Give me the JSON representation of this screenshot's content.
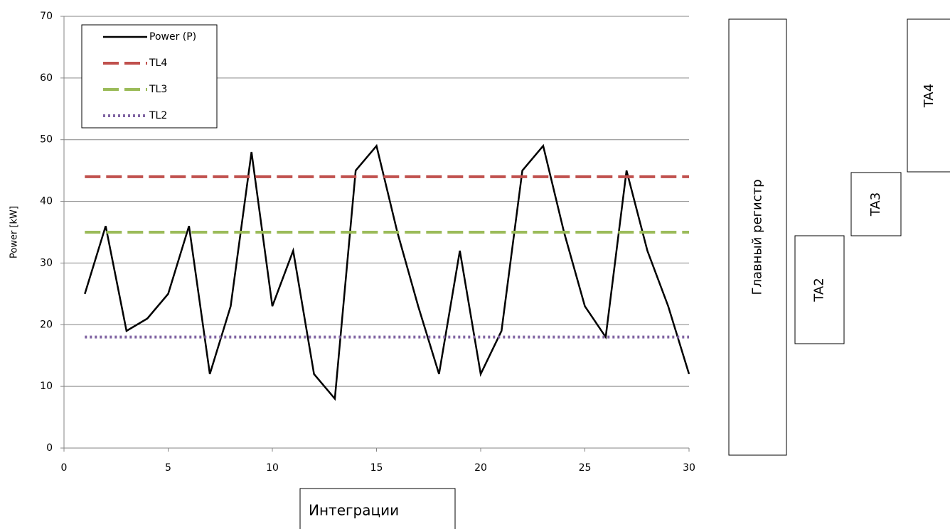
{
  "chart_data": {
    "type": "line",
    "y_label": "Power [kW]",
    "x": [
      1,
      2,
      3,
      4,
      5,
      6,
      7,
      8,
      9,
      10,
      11,
      12,
      13,
      14,
      15,
      16,
      17,
      18,
      19,
      20,
      21,
      22,
      23,
      24,
      25,
      26,
      27,
      28,
      29,
      30
    ],
    "series": [
      {
        "name": "Power (P)",
        "color": "#000000",
        "style": "solid",
        "values": [
          25,
          36,
          19,
          21,
          25,
          36,
          12,
          23,
          48,
          23,
          32,
          12,
          8,
          45,
          49,
          35,
          23,
          12,
          32,
          12,
          19,
          45,
          49,
          35,
          23,
          18,
          45,
          32,
          23,
          12
        ]
      },
      {
        "name": "TL4",
        "color": "#c0504d",
        "style": "dashed",
        "values": [
          44,
          44,
          44,
          44,
          44,
          44,
          44,
          44,
          44,
          44,
          44,
          44,
          44,
          44,
          44,
          44,
          44,
          44,
          44,
          44,
          44,
          44,
          44,
          44,
          44,
          44,
          44,
          44,
          44,
          44
        ]
      },
      {
        "name": "TL3",
        "color": "#9bbb59",
        "style": "dashed",
        "values": [
          35,
          35,
          35,
          35,
          35,
          35,
          35,
          35,
          35,
          35,
          35,
          35,
          35,
          35,
          35,
          35,
          35,
          35,
          35,
          35,
          35,
          35,
          35,
          35,
          35,
          35,
          35,
          35,
          35,
          35
        ]
      },
      {
        "name": "TL2",
        "color": "#8064a2",
        "style": "dotted",
        "values": [
          18,
          18,
          18,
          18,
          18,
          18,
          18,
          18,
          18,
          18,
          18,
          18,
          18,
          18,
          18,
          18,
          18,
          18,
          18,
          18,
          18,
          18,
          18,
          18,
          18,
          18,
          18,
          18,
          18,
          18
        ]
      }
    ],
    "xlim": [
      0,
      30
    ],
    "xticks": [
      0,
      5,
      10,
      15,
      20,
      25,
      30
    ],
    "ylim": [
      0,
      70
    ],
    "yticks": [
      0,
      10,
      20,
      30,
      40,
      50,
      60,
      70
    ],
    "grid": true,
    "legend": "top-left",
    "annotations": [
      "Главный регистр",
      "TA2",
      "TA3",
      "TA4",
      "Интеграции"
    ]
  }
}
